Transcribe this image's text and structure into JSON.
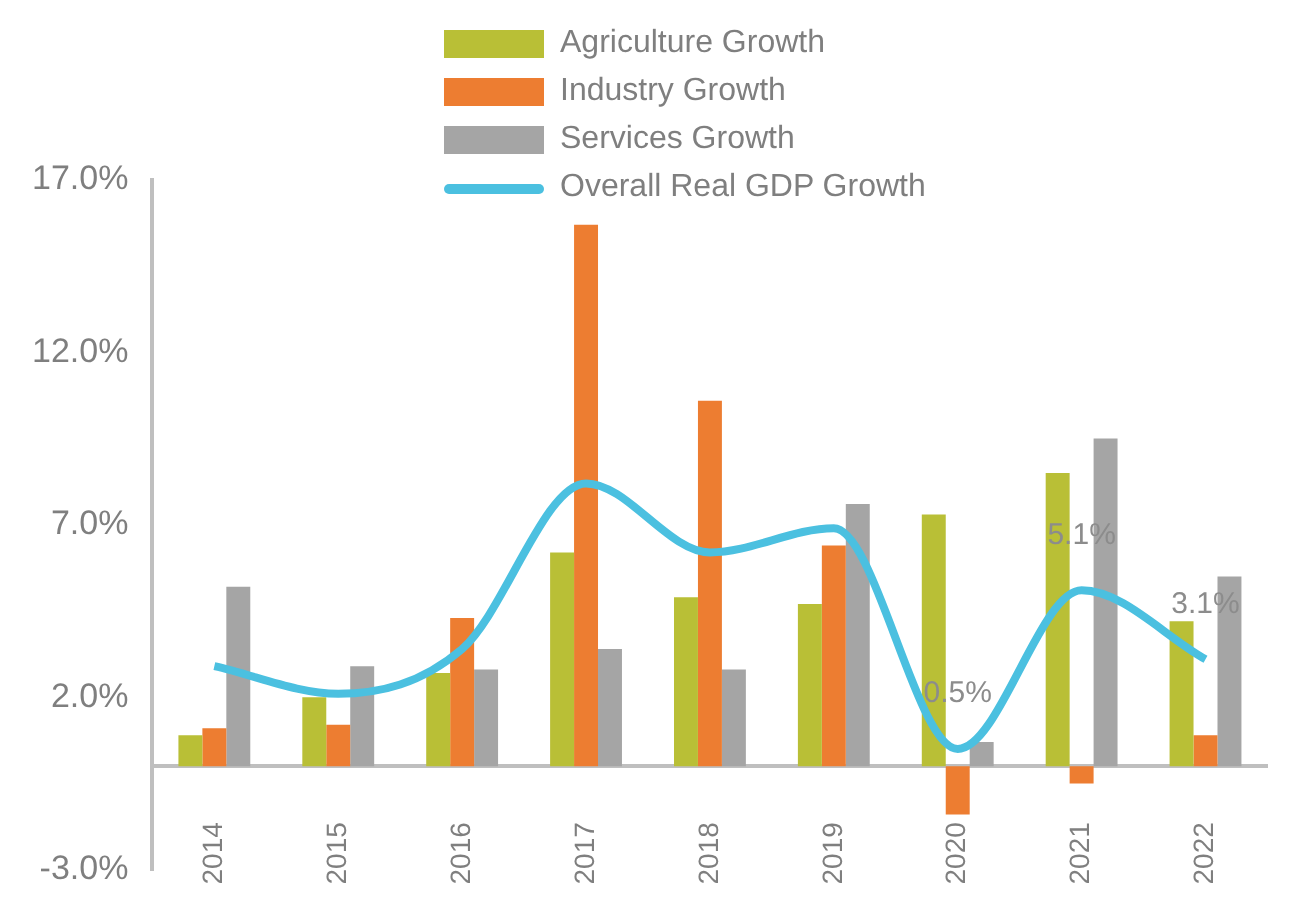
{
  "chart_data": {
    "type": "bar",
    "categories": [
      "2014",
      "2015",
      "2016",
      "2017",
      "2018",
      "2019",
      "2020",
      "2021",
      "2022"
    ],
    "series": [
      {
        "name": "Agriculture Growth",
        "color": "#b9bf36",
        "values": [
          0.9,
          2.0,
          2.7,
          6.2,
          4.9,
          4.7,
          7.3,
          8.5,
          4.2
        ]
      },
      {
        "name": "Industry Growth",
        "color": "#ed7d31",
        "values": [
          1.1,
          1.2,
          4.3,
          15.7,
          10.6,
          6.4,
          -1.4,
          -0.5,
          0.9
        ]
      },
      {
        "name": "Services Growth",
        "color": "#a5a5a5",
        "values": [
          5.2,
          2.9,
          2.8,
          3.4,
          2.8,
          7.6,
          0.7,
          9.5,
          5.5
        ]
      },
      {
        "name": "Overall Real GDP Growth",
        "type": "line",
        "color": "#4bc0e0",
        "values": [
          2.9,
          2.1,
          3.4,
          8.2,
          6.2,
          6.9,
          0.5,
          5.1,
          3.1
        ],
        "value_labels": [
          null,
          null,
          null,
          null,
          null,
          null,
          "0.5%",
          "5.1%",
          "3.1%"
        ]
      }
    ],
    "ylim": [
      -3,
      17
    ],
    "yticks": [
      {
        "value": -3,
        "label": "-3.0%"
      },
      {
        "value": 2,
        "label": "2.0%"
      },
      {
        "value": 7,
        "label": "7.0%"
      },
      {
        "value": 12,
        "label": "12.0%"
      },
      {
        "value": 17,
        "label": "17.0%"
      }
    ],
    "grid": false,
    "legend": "top",
    "marker": "none"
  }
}
